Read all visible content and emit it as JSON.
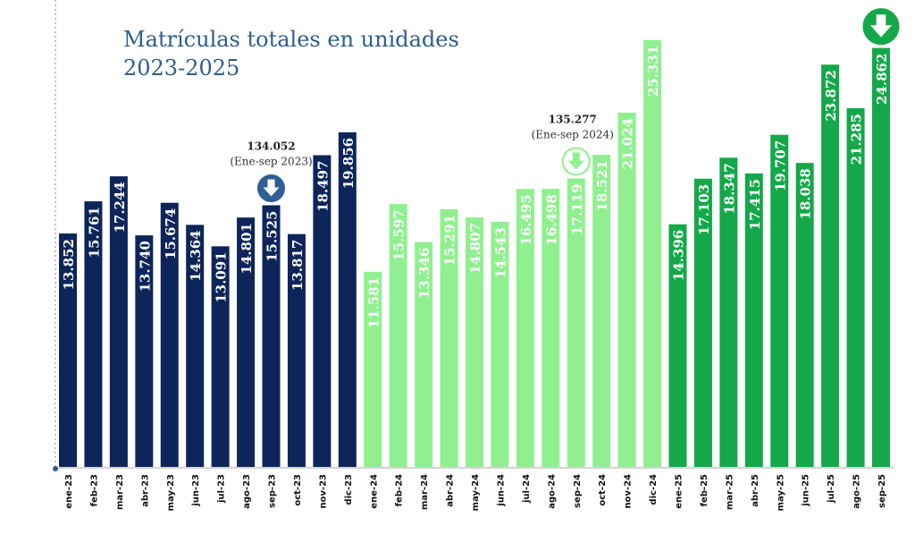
{
  "chart_data": {
    "type": "bar",
    "title_line1": "Matrículas totales en unidades",
    "title_line2": "2023-2025",
    "xlabel": "",
    "ylabel": "",
    "grid": false,
    "categories": [
      "ene-23",
      "feb-23",
      "mar-23",
      "abr-23",
      "may-23",
      "jun-23",
      "jul-23",
      "ago-23",
      "sep-23",
      "oct-23",
      "nov-23",
      "dic-23",
      "ene-24",
      "feb-24",
      "mar-24",
      "abr-24",
      "may-24",
      "jun-24",
      "jul-24",
      "ago-24",
      "sep-24",
      "oct-24",
      "nov-24",
      "dic-24",
      "ene-25",
      "feb-25",
      "mar-25",
      "abr-25",
      "may-25",
      "jun-25",
      "jul-25",
      "ago-25",
      "sep-25"
    ],
    "values": [
      13852,
      15761,
      17244,
      13740,
      15674,
      14364,
      13091,
      14801,
      15525,
      13817,
      18497,
      19856,
      11581,
      15597,
      13346,
      15291,
      14807,
      14543,
      16495,
      16498,
      17119,
      18521,
      21024,
      25331,
      14396,
      17103,
      18347,
      17415,
      19707,
      18038,
      23872,
      21285,
      24862
    ],
    "labels": [
      "13.852",
      "15.761",
      "17.244",
      "13.740",
      "15.674",
      "14.364",
      "13.091",
      "14.801",
      "15.525",
      "13.817",
      "18.497",
      "19.856",
      "11.581",
      "15.597",
      "13.346",
      "15.291",
      "14.807",
      "14.543",
      "16.495",
      "16.498",
      "17.119",
      "18.521",
      "21.024",
      "25.331",
      "14.396",
      "17.103",
      "18.347",
      "17.415",
      "19.707",
      "18.038",
      "23.872",
      "21.285",
      "24.862"
    ],
    "year_colors": {
      "2023": "#0d2559",
      "2024": "#90f090",
      "2025": "#14a84a"
    },
    "label_colors": {
      "2023": "#ffffff",
      "2024": "#ffffff",
      "2025": "#ffffff"
    },
    "ylim": [
      0,
      27000
    ],
    "annotations": [
      {
        "index": 8,
        "total": "134.052",
        "period": "(Ene-sep 2023)",
        "arrow_color": "#2f5f95",
        "arrow": "down-arrow"
      },
      {
        "index": 20,
        "total": "135.277",
        "period": "(Ene-sep 2024)",
        "arrow_color": "#90f090",
        "arrow": "down-arrow"
      },
      {
        "index": 32,
        "total": "",
        "period": "",
        "arrow_color": "#14a84a",
        "arrow": "down-arrow"
      }
    ]
  }
}
